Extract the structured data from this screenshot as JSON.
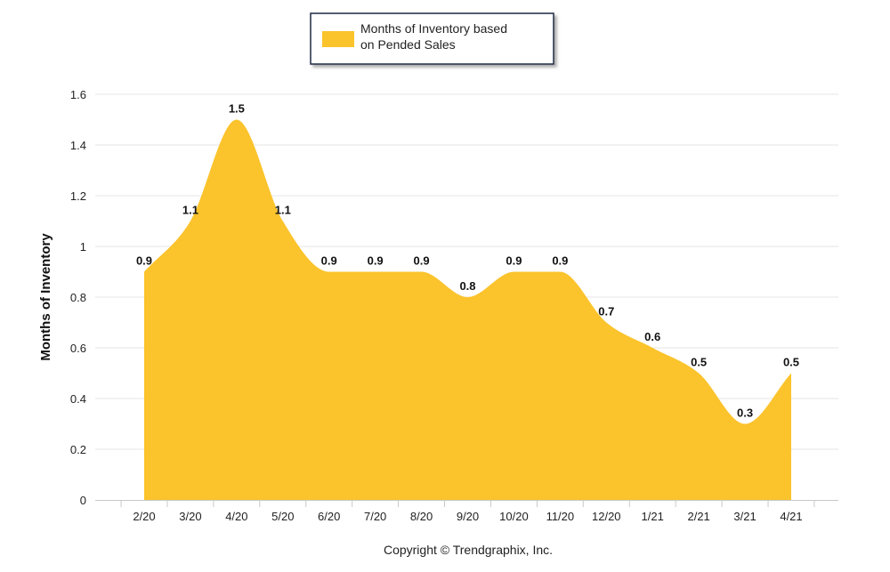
{
  "chart_data": {
    "type": "area",
    "categories": [
      "2/20",
      "3/20",
      "4/20",
      "5/20",
      "6/20",
      "7/20",
      "8/20",
      "9/20",
      "10/20",
      "11/20",
      "12/20",
      "1/21",
      "2/21",
      "3/21",
      "4/21"
    ],
    "series": [
      {
        "name": "Months of Inventory based on Pended Sales",
        "values": [
          0.9,
          1.1,
          1.5,
          1.1,
          0.9,
          0.9,
          0.9,
          0.8,
          0.9,
          0.9,
          0.7,
          0.6,
          0.5,
          0.3,
          0.5
        ],
        "color": "#FBC32C"
      }
    ],
    "value_labels": [
      "0.9",
      "1.1",
      "1.5",
      "1.1",
      "0.9",
      "0.9",
      "0.9",
      "0.8",
      "0.9",
      "0.9",
      "0.7",
      "0.6",
      "0.5",
      "0.3",
      "0.5"
    ],
    "ylabel": "Months of Inventory",
    "ylim": [
      0,
      1.6
    ],
    "yticks": [
      0,
      0.2,
      0.4,
      0.6,
      0.8,
      1,
      1.2,
      1.4,
      1.6
    ],
    "ytick_labels": [
      "0",
      "0.2",
      "0.4",
      "0.6",
      "0.8",
      "1",
      "1.2",
      "1.4",
      "1.6"
    ],
    "grid": true,
    "legend_position": "top-center",
    "legend_lines": [
      "Months of Inventory based",
      "on Pended Sales"
    ]
  },
  "footer": {
    "copyright": "Copyright © Trendgraphix, Inc."
  },
  "colors": {
    "fill": "#FBC32C",
    "grid": "#E6E6E6",
    "axis": "#C8C8C8"
  }
}
